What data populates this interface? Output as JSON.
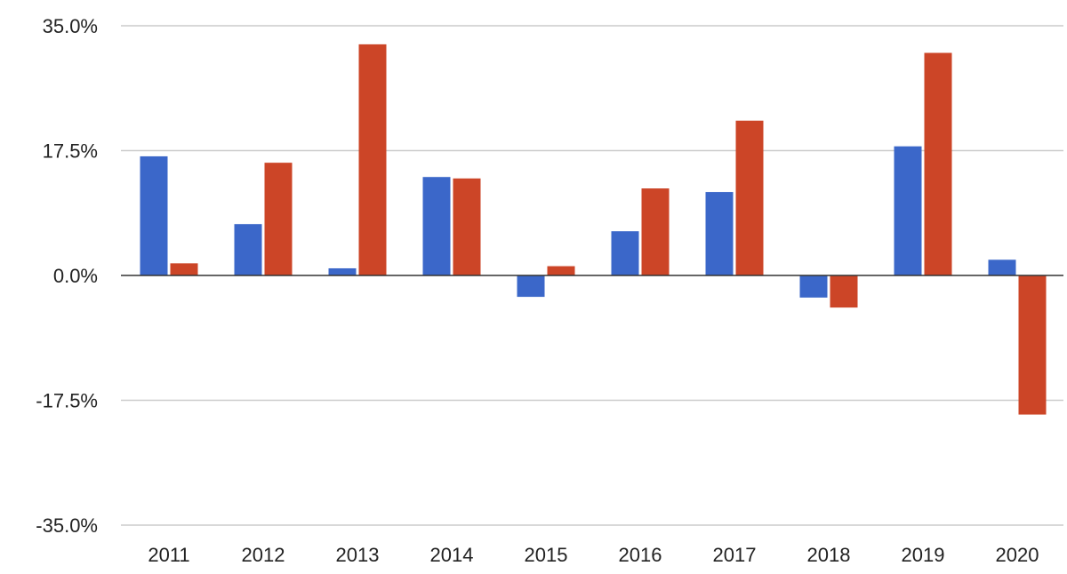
{
  "chart_data": {
    "type": "bar",
    "title": "",
    "xlabel": "",
    "ylabel": "",
    "categories": [
      "2011",
      "2012",
      "2013",
      "2014",
      "2015",
      "2016",
      "2017",
      "2018",
      "2019",
      "2020"
    ],
    "series": [
      {
        "color": "#3b67c9",
        "values": [
          16.7,
          7.2,
          1.0,
          13.8,
          -3.0,
          6.2,
          11.7,
          -3.1,
          18.1,
          2.2
        ]
      },
      {
        "color": "#cc4527",
        "values": [
          1.7,
          15.8,
          32.4,
          13.6,
          1.3,
          12.2,
          21.7,
          -4.5,
          31.2,
          -19.5
        ]
      }
    ],
    "ylim": [
      -35,
      35
    ],
    "yticks": [
      35,
      17.5,
      0,
      -17.5,
      -35
    ],
    "ytick_labels": [
      "35.0%",
      "17.5%",
      "0.0%",
      "-17.5%",
      "-35.0%"
    ],
    "grid": true,
    "legend": "none"
  }
}
